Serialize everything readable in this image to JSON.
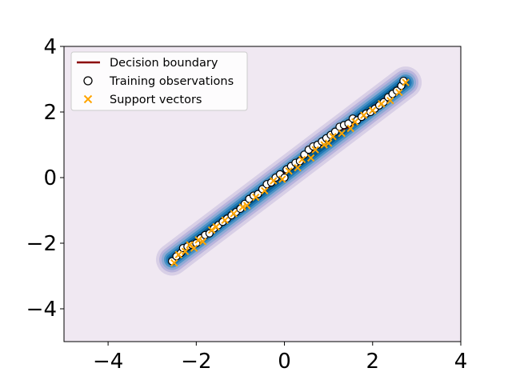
{
  "chart_data": {
    "type": "scatter",
    "xlim": [
      -5,
      4
    ],
    "ylim": [
      -5,
      4
    ],
    "x_ticks": [
      -4,
      -2,
      0,
      2,
      4
    ],
    "y_ticks": [
      -4,
      -2,
      0,
      2,
      4
    ],
    "x_tick_labels": [
      "−4",
      "−2",
      "0",
      "2",
      "4"
    ],
    "y_tick_labels": [
      "−4",
      "−2",
      "0",
      "2",
      "4"
    ],
    "grid": false,
    "background_color": "#f0e8f2",
    "legend": {
      "position": "top-left",
      "entries": [
        {
          "label": "Decision boundary",
          "marker": "line",
          "color": "#8b0000"
        },
        {
          "label": "Training observations",
          "marker": "circle-open",
          "color": "#000000"
        },
        {
          "label": "Support vectors",
          "marker": "x",
          "color": "#ffa500"
        }
      ]
    },
    "contour_band": {
      "from": [
        -2.55,
        -2.5
      ],
      "to": [
        2.75,
        2.9
      ],
      "colors": [
        "#d8cfe6",
        "#b9b4dc",
        "#8fa9d4",
        "#4c93c6",
        "#1f78b4",
        "#045a8d"
      ]
    },
    "series": [
      {
        "name": "Training observations",
        "marker": "circle-open",
        "x": [
          -2.55,
          -2.45,
          -2.35,
          -2.3,
          -2.2,
          -2.1,
          -2.0,
          -1.9,
          -1.8,
          -1.7,
          -1.6,
          -1.5,
          -1.4,
          -1.3,
          -1.2,
          -1.1,
          -1.0,
          -0.9,
          -0.8,
          -0.7,
          -0.6,
          -0.5,
          -0.4,
          -0.3,
          -0.2,
          -0.1,
          0.0,
          0.05,
          0.15,
          0.25,
          0.35,
          0.45,
          0.55,
          0.65,
          0.75,
          0.85,
          0.95,
          1.05,
          1.15,
          1.25,
          1.35,
          1.45,
          1.55,
          1.65,
          1.75,
          1.85,
          1.95,
          2.05,
          2.15,
          2.25,
          2.35,
          2.45,
          2.55,
          2.65,
          2.7
        ],
        "y": [
          -2.55,
          -2.4,
          -2.3,
          -2.15,
          -2.1,
          -2.05,
          -2.0,
          -1.85,
          -1.75,
          -1.7,
          -1.55,
          -1.45,
          -1.35,
          -1.25,
          -1.15,
          -1.05,
          -0.95,
          -0.8,
          -0.65,
          -0.55,
          -0.5,
          -0.35,
          -0.2,
          -0.15,
          0.0,
          0.1,
          0.0,
          0.25,
          0.35,
          0.45,
          0.5,
          0.7,
          0.85,
          0.95,
          1.0,
          1.1,
          1.2,
          1.3,
          1.4,
          1.55,
          1.6,
          1.65,
          1.8,
          1.75,
          1.85,
          1.95,
          2.0,
          2.1,
          2.2,
          2.3,
          2.45,
          2.55,
          2.65,
          2.8,
          2.95
        ]
      },
      {
        "name": "Support vectors",
        "marker": "x",
        "x": [
          -2.5,
          -2.4,
          -2.25,
          -2.15,
          -2.05,
          -1.95,
          -1.85,
          -1.65,
          -1.55,
          -1.35,
          -1.15,
          -0.95,
          -0.85,
          -0.65,
          -0.45,
          -0.25,
          -0.05,
          0.1,
          0.3,
          0.4,
          0.6,
          0.7,
          0.9,
          1.0,
          1.1,
          1.3,
          1.5,
          1.6,
          1.8,
          2.0,
          2.2,
          2.4,
          2.6,
          2.75
        ],
        "y": [
          -2.6,
          -2.35,
          -2.25,
          -2.05,
          -2.15,
          -1.9,
          -1.95,
          -1.6,
          -1.5,
          -1.3,
          -1.1,
          -0.9,
          -0.85,
          -0.6,
          -0.4,
          -0.1,
          -0.05,
          0.2,
          0.3,
          0.55,
          0.6,
          0.85,
          1.0,
          1.05,
          1.25,
          1.35,
          1.5,
          1.7,
          1.9,
          2.05,
          2.25,
          2.35,
          2.6,
          2.9
        ]
      },
      {
        "name": "Decision boundary",
        "marker": "line",
        "x": [
          -2.45,
          -2.1,
          -1.7,
          -1.3,
          -0.9,
          -0.5,
          -0.15,
          0.15,
          0.4,
          0.7,
          0.95,
          1.25,
          1.5,
          1.75,
          2.0,
          2.3,
          2.6
        ],
        "y": [
          -2.4,
          -2.0,
          -1.65,
          -1.25,
          -0.85,
          -0.45,
          -0.05,
          0.35,
          0.65,
          0.85,
          1.2,
          1.45,
          1.55,
          1.9,
          2.15,
          2.45,
          2.8
        ]
      }
    ]
  }
}
